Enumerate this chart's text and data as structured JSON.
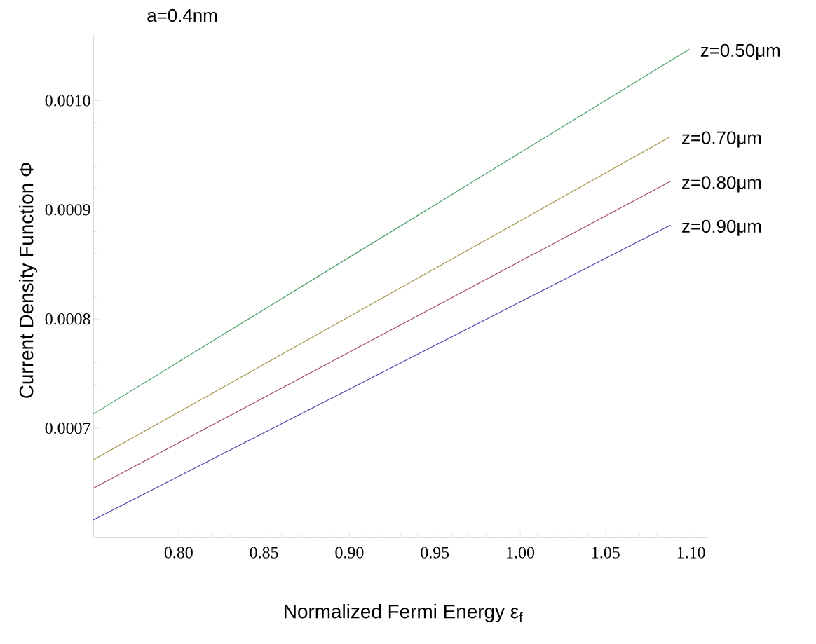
{
  "chart_data": {
    "type": "line",
    "title": "a=0.4nm",
    "xlabel": "Normalized   Fermi Energy  ε$_{f}$",
    "ylabel": "Current Density Function Φ",
    "x": [
      0.75,
      1.088
    ],
    "series": [
      {
        "name": "z=0.50μm",
        "color": "#3a9a5a",
        "x": [
          0.75,
          1.099
        ],
        "values": [
          0.000713,
          0.001047
        ]
      },
      {
        "name": "z=0.70μm",
        "color": "#a08c3c",
        "values": [
          0.000671,
          0.000967
        ]
      },
      {
        "name": "z=0.80μm",
        "color": "#a03a6e",
        "values": [
          0.000645,
          0.000926
        ]
      },
      {
        "name": "z=0.90μm",
        "color": "#3c3ca8",
        "values": [
          0.000616,
          0.000886
        ]
      }
    ],
    "xlim": [
      0.75,
      1.11
    ],
    "ylim": [
      0.0006,
      0.00106
    ],
    "xticks": [
      {
        "value": 0.8,
        "label": "0.80"
      },
      {
        "value": 0.85,
        "label": "0.85"
      },
      {
        "value": 0.9,
        "label": "0.90"
      },
      {
        "value": 0.95,
        "label": "0.95"
      },
      {
        "value": 1.0,
        "label": "1.00"
      },
      {
        "value": 1.05,
        "label": "1.05"
      },
      {
        "value": 1.1,
        "label": "1.10"
      }
    ],
    "yticks": [
      {
        "value": 0.0007,
        "label": "0.0007"
      },
      {
        "value": 0.0008,
        "label": "0.0008"
      },
      {
        "value": 0.0009,
        "label": "0.0009"
      },
      {
        "value": 0.001,
        "label": "0.0010"
      }
    ],
    "grid": false,
    "marker": "none",
    "line_style": "solid"
  }
}
